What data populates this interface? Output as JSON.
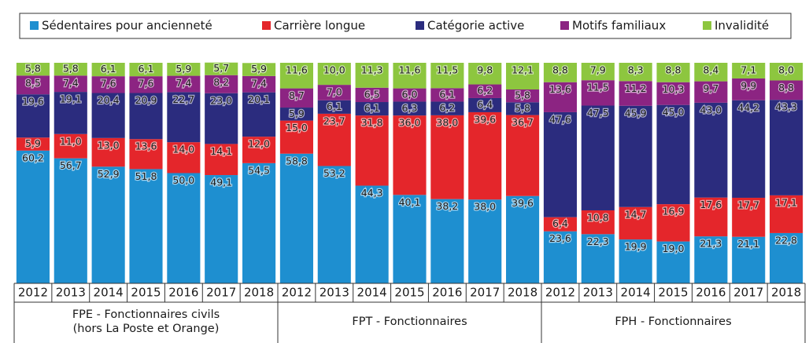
{
  "chart_data": {
    "type": "stacked-bar",
    "categories": [
      "2012",
      "2013",
      "2014",
      "2015",
      "2016",
      "2017",
      "2018",
      "2012",
      "2013",
      "2014",
      "2015",
      "2016",
      "2017",
      "2018",
      "2012",
      "2013",
      "2014",
      "2015",
      "2016",
      "2017",
      "2018"
    ],
    "groups": [
      [
        "FPE - Fonctionnaires civils",
        "(hors La Poste et Orange)"
      ],
      [
        "FPT - Fonctionnaires"
      ],
      [
        "FPH - Fonctionnaires"
      ]
    ],
    "ylim": [
      0,
      100
    ],
    "series": [
      {
        "name": "Sédentaires pour ancienneté",
        "color": "#1e8fd0",
        "values": [
          60.2,
          56.7,
          52.9,
          51.8,
          50.0,
          49.1,
          54.5,
          58.8,
          53.2,
          44.3,
          40.1,
          38.2,
          38.0,
          39.6,
          23.6,
          22.3,
          19.9,
          19.0,
          21.3,
          21.1,
          22.8
        ],
        "value_labels": [
          "60,2",
          "56,7",
          "52,9",
          "51,8",
          "50,0",
          "49,1",
          "54,5",
          "58,8",
          "53,2",
          "44,3",
          "40,1",
          "38,2",
          "38,0",
          "39,6",
          "23,6",
          "22,3",
          "19,9",
          "19,0",
          "21,3",
          "21,1",
          "22,8"
        ]
      },
      {
        "name": "Carrière longue",
        "color": "#e4262b",
        "values": [
          5.9,
          11.0,
          13.0,
          13.6,
          14.0,
          14.1,
          12.0,
          15.0,
          23.7,
          31.8,
          36.0,
          38.0,
          39.6,
          36.7,
          6.4,
          10.8,
          14.7,
          16.9,
          17.6,
          17.7,
          17.1
        ],
        "value_labels": [
          "5,9",
          "11,0",
          "13,0",
          "13,6",
          "14,0",
          "14,1",
          "12,0",
          "15,0",
          "23,7",
          "31,8",
          "36,0",
          "38,0",
          "39,6",
          "36,7",
          "6,4",
          "10,8",
          "14,7",
          "16,9",
          "17,6",
          "17,7",
          "17,1"
        ]
      },
      {
        "name": "Catégorie active",
        "color": "#2b2c7e",
        "values": [
          19.6,
          19.1,
          20.4,
          20.9,
          22.7,
          23.0,
          20.1,
          5.9,
          6.1,
          6.1,
          6.3,
          6.2,
          6.4,
          5.8,
          47.6,
          47.5,
          45.9,
          45.0,
          43.0,
          44.2,
          43.3
        ],
        "value_labels": [
          "19,6",
          "19,1",
          "20,4",
          "20,9",
          "22,7",
          "23,0",
          "20,1",
          "5,9",
          "6,1",
          "6,1",
          "6,3",
          "6,2",
          "6,4",
          "5,8",
          "47,6",
          "47,5",
          "45,9",
          "45,0",
          "43,0",
          "44,2",
          "43,3"
        ]
      },
      {
        "name": "Motifs familiaux",
        "color": "#8c2482",
        "values": [
          8.5,
          7.4,
          7.6,
          7.6,
          7.4,
          8.2,
          7.4,
          8.7,
          7.0,
          6.5,
          6.0,
          6.1,
          6.2,
          5.8,
          13.6,
          11.5,
          11.2,
          10.3,
          9.7,
          9.9,
          8.8
        ],
        "value_labels": [
          "8,5",
          "7,4",
          "7,6",
          "7,6",
          "7,4",
          "8,2",
          "7,4",
          "8,7",
          "7,0",
          "6,5",
          "6,0",
          "6,1",
          "6,2",
          "5,8",
          "13,6",
          "11,5",
          "11,2",
          "10,3",
          "9,7",
          "9,9",
          "8,8"
        ]
      },
      {
        "name": "Invalidité",
        "color": "#8dc63f",
        "values": [
          5.8,
          5.8,
          6.1,
          6.1,
          5.9,
          5.7,
          5.9,
          11.6,
          10.0,
          11.3,
          11.6,
          11.5,
          9.8,
          12.1,
          8.8,
          7.9,
          8.3,
          8.8,
          8.4,
          7.1,
          8.0
        ],
        "value_labels": [
          "5,8",
          "5,8",
          "6,1",
          "6,1",
          "5,9",
          "5,7",
          "5,9",
          "11,6",
          "10,0",
          "11,3",
          "11,6",
          "11,5",
          "9,8",
          "12,1",
          "8,8",
          "7,9",
          "8,3",
          "8,8",
          "8,4",
          "7,1",
          "8,0"
        ]
      }
    ]
  }
}
